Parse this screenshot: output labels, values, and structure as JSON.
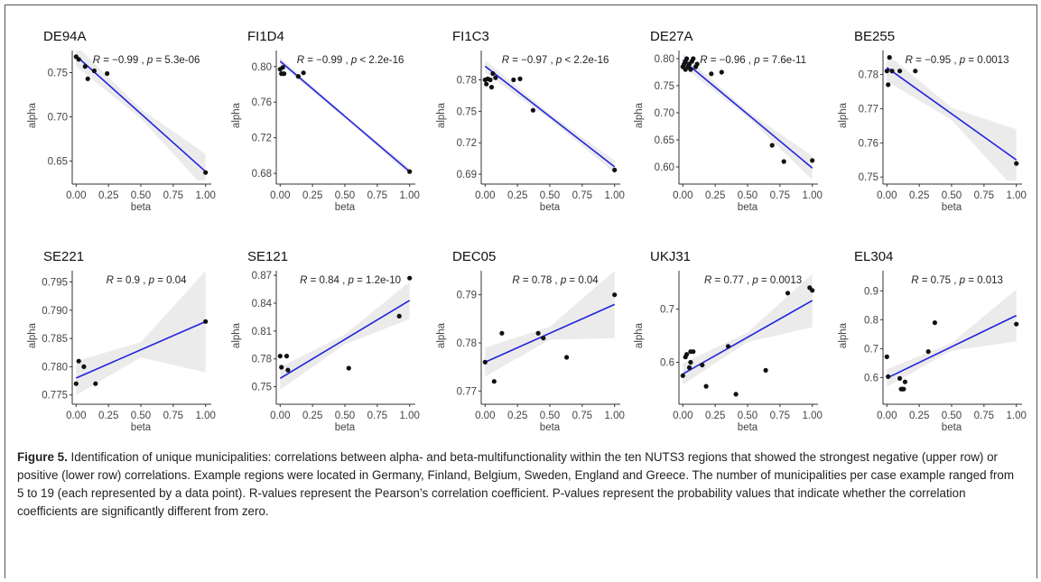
{
  "figure": {
    "caption_label": "Figure 5.",
    "caption_text": " Identification of unique municipalities: correlations between alpha- and beta-multifunctionality within the ten NUTS3 regions that showed the strongest negative (upper row) or positive (lower row) correlations. Example regions were located in Germany, Finland, Belgium, Sweden, England and Greece. The number of municipalities per case example ranged from 5 to 19 (each represented by a data point). R-values represent the Pearson’s correlation coefficient. P-values represent the probability values that indicate whether the correlation coefficients are significantly different from zero."
  },
  "colors": {
    "line": "#2222dd",
    "band": "#ebebeb",
    "point": "#111111",
    "axis": "#333333"
  },
  "chart_data": [
    {
      "type": "scatter",
      "title": "DE94A",
      "annotation": "R = −0.99 , p = 5.3e-06",
      "xlabel": "beta",
      "ylabel": "alpha",
      "xlim": [
        -0.03,
        1.03
      ],
      "ylim": [
        0.628,
        0.775
      ],
      "yticks": [
        0.65,
        0.7,
        0.75
      ],
      "ytick_labels": [
        "0.65",
        "0.70",
        "0.75"
      ],
      "xticks": [
        0,
        0.25,
        0.5,
        0.75,
        1
      ],
      "xtick_labels": [
        "0.00",
        "0.25",
        "0.50",
        "0.75",
        "1.00"
      ],
      "x": [
        0.0,
        0.02,
        0.07,
        0.09,
        0.14,
        0.24,
        1.0
      ],
      "y": [
        0.768,
        0.765,
        0.757,
        0.743,
        0.752,
        0.749,
        0.637
      ],
      "fit": [
        [
          0.0,
          0.769
        ],
        [
          1.0,
          0.638
        ]
      ],
      "band_start": 0.012,
      "band_end": 0.02
    },
    {
      "type": "scatter",
      "title": "FI1D4",
      "annotation": "R = −0.99 , p < 2.2e-16",
      "xlabel": "beta",
      "ylabel": "alpha",
      "xlim": [
        -0.03,
        1.03
      ],
      "ylim": [
        0.672,
        0.818
      ],
      "yticks": [
        0.68,
        0.72,
        0.76,
        0.8
      ],
      "ytick_labels": [
        "0.68",
        "0.72",
        "0.76",
        "0.80"
      ],
      "xticks": [
        0,
        0.25,
        0.5,
        0.75,
        1
      ],
      "xtick_labels": [
        "0.00",
        "0.25",
        "0.50",
        "0.75",
        "1.00"
      ],
      "x": [
        0.0,
        0.01,
        0.02,
        0.03,
        0.14,
        0.18,
        1.0
      ],
      "y": [
        0.797,
        0.792,
        0.799,
        0.792,
        0.789,
        0.793,
        0.682
      ],
      "fit": [
        [
          0.0,
          0.806
        ],
        [
          1.0,
          0.682
        ]
      ],
      "band_start": 0.004,
      "band_end": 0.004
    },
    {
      "type": "scatter",
      "title": "FI1C3",
      "annotation": "R = −0.97 , p < 2.2e-16",
      "xlabel": "beta",
      "ylabel": "alpha",
      "xlim": [
        -0.03,
        1.03
      ],
      "ylim": [
        0.684,
        0.808
      ],
      "yticks": [
        0.69,
        0.72,
        0.75,
        0.78
      ],
      "ytick_labels": [
        "0.69",
        "0.72",
        "0.75",
        "0.78"
      ],
      "xticks": [
        0,
        0.25,
        0.5,
        0.75,
        1
      ],
      "xtick_labels": [
        "0.00",
        "0.25",
        "0.50",
        "0.75",
        "1.00"
      ],
      "x": [
        0.0,
        0.01,
        0.02,
        0.04,
        0.05,
        0.06,
        0.08,
        0.22,
        0.27,
        0.37,
        1.0
      ],
      "y": [
        0.78,
        0.776,
        0.781,
        0.78,
        0.773,
        0.786,
        0.782,
        0.78,
        0.781,
        0.751,
        0.694
      ],
      "fit": [
        [
          0.0,
          0.793
        ],
        [
          1.0,
          0.697
        ]
      ],
      "band_start": 0.006,
      "band_end": 0.006
    },
    {
      "type": "scatter",
      "title": "DE27A",
      "annotation": "R = −0.96 , p = 7.6e-11",
      "xlabel": "beta",
      "ylabel": "alpha",
      "xlim": [
        -0.03,
        1.03
      ],
      "ylim": [
        0.575,
        0.815
      ],
      "yticks": [
        0.6,
        0.65,
        0.7,
        0.75,
        0.8
      ],
      "ytick_labels": [
        "0.60",
        "0.65",
        "0.70",
        "0.75",
        "0.80"
      ],
      "xticks": [
        0,
        0.25,
        0.5,
        0.75,
        1
      ],
      "xtick_labels": [
        "0.00",
        "0.25",
        "0.50",
        "0.75",
        "1.00"
      ],
      "x": [
        0.0,
        0.01,
        0.02,
        0.02,
        0.03,
        0.04,
        0.05,
        0.06,
        0.07,
        0.08,
        0.1,
        0.11,
        0.22,
        0.3,
        0.69,
        0.78,
        1.0
      ],
      "y": [
        0.785,
        0.79,
        0.78,
        0.795,
        0.8,
        0.785,
        0.79,
        0.78,
        0.795,
        0.8,
        0.785,
        0.79,
        0.772,
        0.775,
        0.64,
        0.61,
        0.612
      ],
      "fit": [
        [
          0.0,
          0.797
        ],
        [
          1.0,
          0.598
        ]
      ],
      "band_start": 0.012,
      "band_end": 0.022
    },
    {
      "type": "scatter",
      "title": "BE255",
      "annotation": "R = −0.95 , p = 0.0013",
      "xlabel": "beta",
      "ylabel": "alpha",
      "xlim": [
        -0.03,
        1.03
      ],
      "ylim": [
        0.749,
        0.787
      ],
      "yticks": [
        0.75,
        0.76,
        0.77,
        0.78
      ],
      "ytick_labels": [
        "0.75",
        "0.76",
        "0.77",
        "0.78"
      ],
      "xticks": [
        0,
        0.25,
        0.5,
        0.75,
        1
      ],
      "xtick_labels": [
        "0.00",
        "0.25",
        "0.50",
        "0.75",
        "1.00"
      ],
      "x": [
        0.0,
        0.01,
        0.02,
        0.04,
        0.1,
        0.22,
        1.0
      ],
      "y": [
        0.781,
        0.777,
        0.785,
        0.781,
        0.781,
        0.781,
        0.754
      ],
      "fit": [
        [
          0.0,
          0.782
        ],
        [
          1.0,
          0.755
        ]
      ],
      "band_start": 0.004,
      "band_end": 0.009
    },
    {
      "type": "scatter",
      "title": "SE221",
      "annotation": "R = 0.9 , p = 0.04",
      "xlabel": "beta",
      "ylabel": "alpha",
      "xlim": [
        -0.03,
        1.03
      ],
      "ylim": [
        0.774,
        0.797
      ],
      "yticks": [
        0.775,
        0.78,
        0.785,
        0.79,
        0.795
      ],
      "ytick_labels": [
        "0.775",
        "0.780",
        "0.785",
        "0.790",
        "0.795"
      ],
      "xticks": [
        0,
        0.25,
        0.5,
        0.75,
        1
      ],
      "xtick_labels": [
        "0.00",
        "0.25",
        "0.50",
        "0.75",
        "1.00"
      ],
      "x": [
        0.0,
        0.02,
        0.06,
        0.15,
        1.0
      ],
      "y": [
        0.777,
        0.781,
        0.78,
        0.777,
        0.788
      ],
      "fit": [
        [
          0.0,
          0.778
        ],
        [
          1.0,
          0.788
        ]
      ],
      "band_start": 0.003,
      "band_end": 0.009
    },
    {
      "type": "scatter",
      "title": "SE121",
      "annotation": "R = 0.84 , p = 1.2e-10",
      "xlabel": "beta",
      "ylabel": "alpha",
      "xlim": [
        -0.03,
        1.03
      ],
      "ylim": [
        0.735,
        0.875
      ],
      "yticks": [
        0.75,
        0.78,
        0.81,
        0.84,
        0.87
      ],
      "ytick_labels": [
        "0.75",
        "0.78",
        "0.81",
        "0.84",
        "0.87"
      ],
      "xticks": [
        0,
        0.25,
        0.5,
        0.75,
        1
      ],
      "xtick_labels": [
        "0.00",
        "0.25",
        "0.50",
        "0.75",
        "1.00"
      ],
      "x": [
        0.0,
        0.01,
        0.05,
        0.06,
        0.53,
        0.92,
        1.0
      ],
      "y": [
        0.783,
        0.771,
        0.783,
        0.768,
        0.77,
        0.826,
        0.867
      ],
      "fit": [
        [
          0.0,
          0.759
        ],
        [
          1.0,
          0.843
        ]
      ],
      "band_start": 0.012,
      "band_end": 0.02
    },
    {
      "type": "scatter",
      "title": "DEC05",
      "annotation": "R = 0.78 , p = 0.04",
      "xlabel": "beta",
      "ylabel": "alpha",
      "xlim": [
        -0.03,
        1.03
      ],
      "ylim": [
        0.768,
        0.795
      ],
      "yticks": [
        0.77,
        0.78,
        0.79
      ],
      "ytick_labels": [
        "0.77",
        "0.78",
        "0.79"
      ],
      "xticks": [
        0,
        0.25,
        0.5,
        0.75,
        1
      ],
      "xtick_labels": [
        "0.00",
        "0.25",
        "0.50",
        "0.75",
        "1.00"
      ],
      "x": [
        0.0,
        0.07,
        0.13,
        0.41,
        0.45,
        0.63,
        1.0
      ],
      "y": [
        0.776,
        0.772,
        0.782,
        0.782,
        0.781,
        0.777,
        0.79
      ],
      "fit": [
        [
          0.0,
          0.776
        ],
        [
          1.0,
          0.788
        ]
      ],
      "band_start": 0.003,
      "band_end": 0.007
    },
    {
      "type": "scatter",
      "title": "UKJ31",
      "annotation": "R = 0.77 , p = 0.0013",
      "xlabel": "beta",
      "ylabel": "alpha",
      "xlim": [
        -0.03,
        1.03
      ],
      "ylim": [
        0.528,
        0.772
      ],
      "yticks": [
        0.6,
        0.7
      ],
      "ytick_labels": [
        "0.6",
        "0.7"
      ],
      "xticks": [
        0,
        0.25,
        0.5,
        0.75,
        1
      ],
      "xtick_labels": [
        "0.00",
        "0.25",
        "0.50",
        "0.75",
        "1.00"
      ],
      "x": [
        0.0,
        0.02,
        0.03,
        0.05,
        0.06,
        0.06,
        0.08,
        0.15,
        0.18,
        0.35,
        0.41,
        0.64,
        0.81,
        0.98,
        1.0
      ],
      "y": [
        0.575,
        0.61,
        0.615,
        0.59,
        0.6,
        0.62,
        0.62,
        0.595,
        0.555,
        0.63,
        0.54,
        0.585,
        0.73,
        0.74,
        0.735
      ],
      "fit": [
        [
          0.0,
          0.578
        ],
        [
          1.0,
          0.716
        ]
      ],
      "band_start": 0.02,
      "band_end": 0.05
    },
    {
      "type": "scatter",
      "title": "EL304",
      "annotation": "R = 0.75 , p = 0.013",
      "xlabel": "beta",
      "ylabel": "alpha",
      "xlim": [
        -0.03,
        1.03
      ],
      "ylim": [
        0.52,
        0.97
      ],
      "yticks": [
        0.6,
        0.7,
        0.8,
        0.9
      ],
      "ytick_labels": [
        "0.6",
        "0.7",
        "0.8",
        "0.9"
      ],
      "xticks": [
        0,
        0.25,
        0.5,
        0.75,
        1
      ],
      "xtick_labels": [
        "0.00",
        "0.25",
        "0.50",
        "0.75",
        "1.00"
      ],
      "x": [
        0.0,
        0.01,
        0.1,
        0.11,
        0.12,
        0.13,
        0.14,
        0.32,
        0.37,
        1.0
      ],
      "y": [
        0.672,
        0.603,
        0.597,
        0.56,
        0.56,
        0.56,
        0.585,
        0.69,
        0.79,
        0.785
      ],
      "fit": [
        [
          0.0,
          0.598
        ],
        [
          1.0,
          0.815
        ]
      ],
      "band_start": 0.03,
      "band_end": 0.09
    }
  ]
}
